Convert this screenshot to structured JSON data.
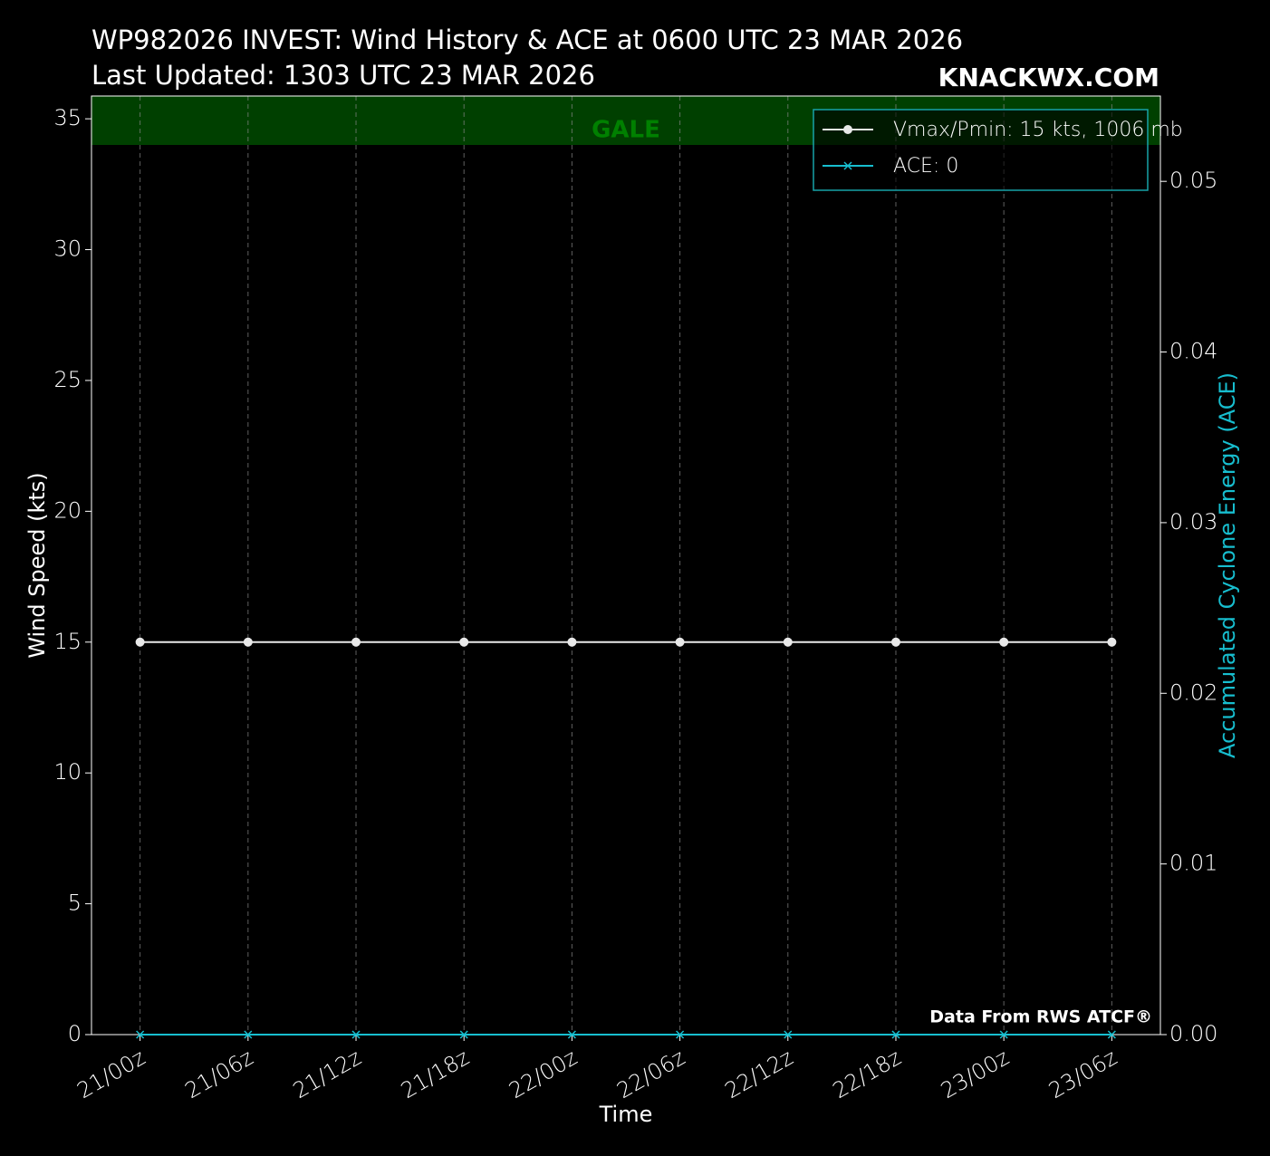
{
  "chart_data": {
    "type": "line",
    "title": "WP982026 INVEST: Wind History & ACE at 0600 UTC 23 MAR 2026",
    "subtitle": "Last Updated: 1303 UTC 23 MAR 2026",
    "brand": "KNACKWX.COM",
    "source": "Data From RWS ATCF®",
    "xlabel": "Time",
    "ylabel": "Wind Speed (kts)",
    "y2label": "Accumulated Cyclone Energy (ACE)",
    "categories": [
      "21/00z",
      "21/06z",
      "21/12z",
      "21/18z",
      "22/00z",
      "22/06z",
      "22/12z",
      "22/18z",
      "23/00z",
      "23/06z"
    ],
    "series": [
      {
        "name": "Vmax/Pmin: 15 kts, 1006 mb",
        "color": "#e8e8e8",
        "marker": "circle",
        "values": [
          15,
          15,
          15,
          15,
          15,
          15,
          15,
          15,
          15,
          15
        ]
      },
      {
        "name": "ACE: 0",
        "color": "#17becf",
        "marker": "x",
        "axis": "y2",
        "values": [
          0,
          0,
          0,
          0,
          0,
          0,
          0,
          0,
          0,
          0
        ]
      }
    ],
    "ylim": [
      0,
      35.87
    ],
    "yticks": [
      0,
      5,
      10,
      15,
      20,
      25,
      30,
      35
    ],
    "y2lim": [
      0,
      0.055
    ],
    "y2ticks": [
      {
        "value": 0,
        "label": "0.00"
      },
      0.01,
      0.02,
      0.03,
      0.04,
      0.05
    ],
    "gale_band": {
      "label": "GALE",
      "from": 34,
      "color": "#004000",
      "text_color": "#008000"
    },
    "grid": "x",
    "legend": "upper right"
  }
}
